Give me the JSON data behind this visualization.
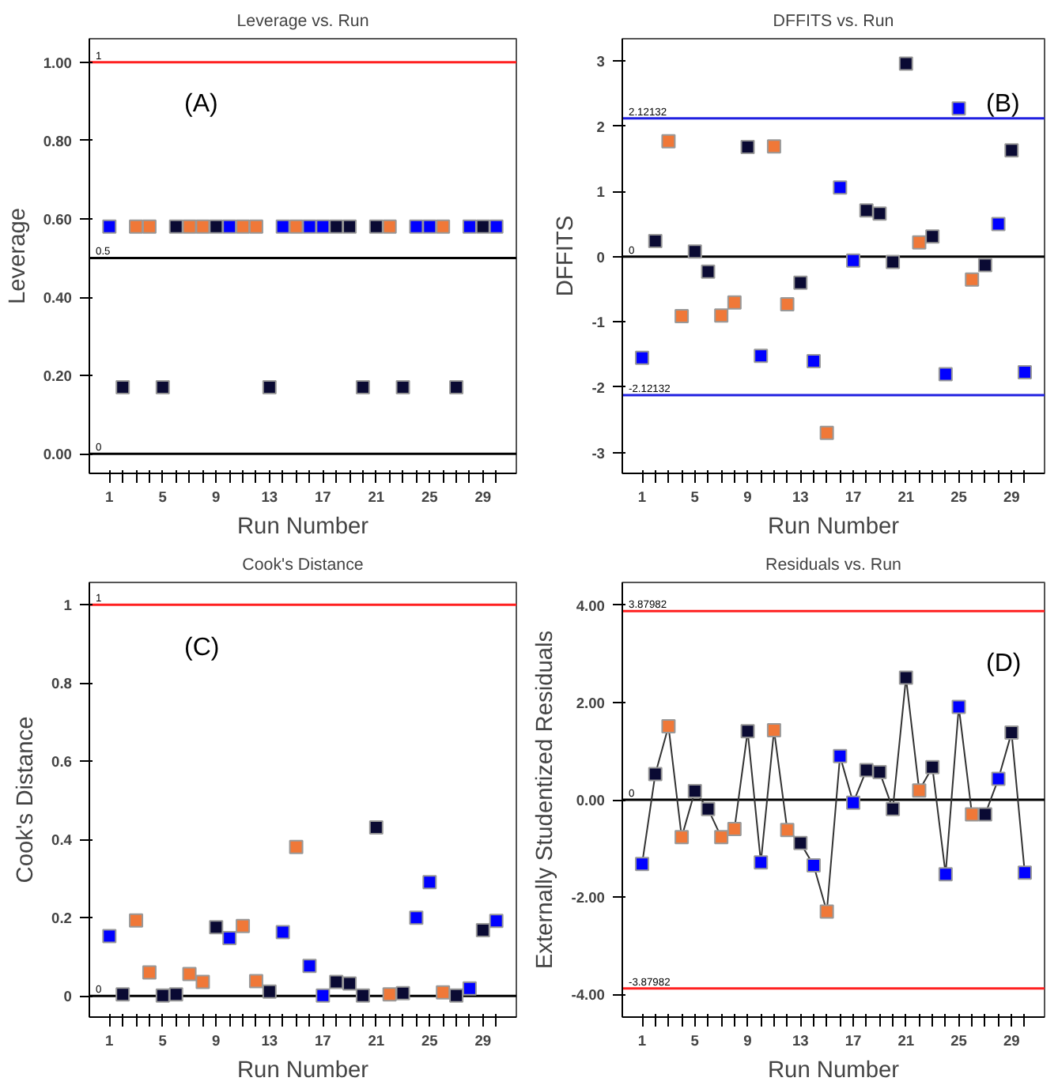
{
  "chart_data": [
    {
      "type": "scatter",
      "title": "Leverage vs. Run",
      "xlabel": "Run Number",
      "ylabel": "Leverage",
      "annotations": [
        "(A)"
      ],
      "marker": "square",
      "grid": false,
      "x": [
        1,
        2,
        3,
        4,
        5,
        6,
        7,
        8,
        9,
        10,
        11,
        12,
        13,
        14,
        15,
        16,
        17,
        18,
        19,
        20,
        21,
        22,
        23,
        24,
        25,
        26,
        27,
        28,
        29,
        30
      ],
      "xlim": [
        -0.5,
        31.5
      ],
      "xticks": [
        1,
        {
          "value": 2,
          "label": null
        },
        {
          "value": 3,
          "label": null
        },
        {
          "value": 4,
          "label": null
        },
        5,
        {
          "value": 6,
          "label": null
        },
        {
          "value": 7,
          "label": null
        },
        {
          "value": 8,
          "label": null
        },
        9,
        {
          "value": 10,
          "label": null
        },
        {
          "value": 11,
          "label": null
        },
        {
          "value": 12,
          "label": null
        },
        13,
        {
          "value": 14,
          "label": null
        },
        {
          "value": 15,
          "label": null
        },
        {
          "value": 16,
          "label": null
        },
        17,
        {
          "value": 18,
          "label": null
        },
        {
          "value": 19,
          "label": null
        },
        {
          "value": 20,
          "label": null
        },
        21,
        {
          "value": 22,
          "label": null
        },
        {
          "value": 23,
          "label": null
        },
        {
          "value": 24,
          "label": null
        },
        25,
        {
          "value": 26,
          "label": null
        },
        {
          "value": 27,
          "label": null
        },
        {
          "value": 28,
          "label": null
        },
        29,
        {
          "value": 30,
          "label": null
        }
      ],
      "ylim": [
        -0.05,
        1.06
      ],
      "yticks": [
        {
          "value": 0,
          "label": "0.00"
        },
        {
          "value": 0.2,
          "label": "0.20"
        },
        {
          "value": 0.4,
          "label": "0.40"
        },
        {
          "value": 0.6,
          "label": "0.60"
        },
        {
          "value": 0.8,
          "label": "0.80"
        },
        {
          "value": 1,
          "label": "1.00"
        }
      ],
      "ref_lines": [
        {
          "axis": "y",
          "value": 1,
          "label": "1",
          "color": "#ff2020"
        },
        {
          "axis": "y",
          "value": 0.5,
          "label": "0.5",
          "color": "#000000"
        },
        {
          "axis": "y",
          "value": 0,
          "label": "0",
          "color": "#000000"
        }
      ],
      "series": [
        {
          "colors": [
            "#0000ff",
            "#0a0a33",
            "#f07838",
            "#f07838",
            "#0a0a33",
            "#0a0a33",
            "#f07838",
            "#f07838",
            "#0a0a33",
            "#0000ff",
            "#f07838",
            "#f07838",
            "#0a0a33",
            "#0000ff",
            "#f07838",
            "#0000ff",
            "#0000ff",
            "#0a0a33",
            "#0a0a33",
            "#0a0a33",
            "#0a0a33",
            "#f07838",
            "#0a0a33",
            "#0000ff",
            "#0000ff",
            "#f07838",
            "#0a0a33",
            "#0000ff",
            "#0a0a33",
            "#0000ff"
          ],
          "values": [
            0.58,
            0.17,
            0.58,
            0.58,
            0.17,
            0.58,
            0.58,
            0.58,
            0.58,
            0.58,
            0.58,
            0.58,
            0.17,
            0.58,
            0.58,
            0.58,
            0.58,
            0.58,
            0.58,
            0.17,
            0.58,
            0.58,
            0.17,
            0.58,
            0.58,
            0.58,
            0.17,
            0.58,
            0.58,
            0.58
          ]
        }
      ]
    },
    {
      "type": "scatter",
      "title": "DFFITS vs. Run",
      "xlabel": "Run Number",
      "ylabel": "DFFITS",
      "annotations": [
        "(B)"
      ],
      "marker": "square",
      "grid": false,
      "x": [
        1,
        2,
        3,
        4,
        5,
        6,
        7,
        8,
        9,
        10,
        11,
        12,
        13,
        14,
        15,
        16,
        17,
        18,
        19,
        20,
        21,
        22,
        23,
        24,
        25,
        26,
        27,
        28,
        29,
        30
      ],
      "xlim": [
        -0.5,
        31.5
      ],
      "xticks": [
        1,
        {
          "value": 2,
          "label": null
        },
        {
          "value": 3,
          "label": null
        },
        {
          "value": 4,
          "label": null
        },
        5,
        {
          "value": 6,
          "label": null
        },
        {
          "value": 7,
          "label": null
        },
        {
          "value": 8,
          "label": null
        },
        9,
        {
          "value": 10,
          "label": null
        },
        {
          "value": 11,
          "label": null
        },
        {
          "value": 12,
          "label": null
        },
        13,
        {
          "value": 14,
          "label": null
        },
        {
          "value": 15,
          "label": null
        },
        {
          "value": 16,
          "label": null
        },
        17,
        {
          "value": 18,
          "label": null
        },
        {
          "value": 19,
          "label": null
        },
        {
          "value": 20,
          "label": null
        },
        21,
        {
          "value": 22,
          "label": null
        },
        {
          "value": 23,
          "label": null
        },
        {
          "value": 24,
          "label": null
        },
        25,
        {
          "value": 26,
          "label": null
        },
        {
          "value": 27,
          "label": null
        },
        {
          "value": 28,
          "label": null
        },
        29,
        {
          "value": 30,
          "label": null
        }
      ],
      "ylim": [
        -3.32,
        3.34
      ],
      "yticks": [
        -3,
        -2,
        -1,
        0,
        1,
        2,
        3
      ],
      "ref_lines": [
        {
          "axis": "y",
          "value": 2.12132,
          "label": "2.12132",
          "color": "#2020e0"
        },
        {
          "axis": "y",
          "value": 0,
          "label": "0",
          "color": "#000000"
        },
        {
          "axis": "y",
          "value": -2.12132,
          "label": "-2.12132",
          "color": "#2020e0"
        }
      ],
      "series": [
        {
          "colors": [
            "#0000ff",
            "#0a0a33",
            "#f07838",
            "#f07838",
            "#0a0a33",
            "#0a0a33",
            "#f07838",
            "#f07838",
            "#0a0a33",
            "#0000ff",
            "#f07838",
            "#f07838",
            "#0a0a33",
            "#0000ff",
            "#f07838",
            "#0000ff",
            "#0000ff",
            "#0a0a33",
            "#0a0a33",
            "#0a0a33",
            "#0a0a33",
            "#f07838",
            "#0a0a33",
            "#0000ff",
            "#0000ff",
            "#f07838",
            "#0a0a33",
            "#0000ff",
            "#0a0a33",
            "#0000ff"
          ],
          "values": [
            -1.55,
            0.24,
            1.77,
            -0.91,
            0.08,
            -0.23,
            -0.9,
            -0.7,
            1.68,
            -1.52,
            1.69,
            -0.73,
            -0.4,
            -1.6,
            -2.7,
            1.06,
            -0.06,
            0.71,
            0.66,
            -0.08,
            2.96,
            0.22,
            0.31,
            -1.8,
            2.27,
            -0.35,
            -0.13,
            0.5,
            1.63,
            -1.77
          ]
        }
      ]
    },
    {
      "type": "scatter",
      "title": "Cook's Distance",
      "xlabel": "Run Number",
      "ylabel": "Cook's Distance",
      "annotations": [
        "(C)"
      ],
      "marker": "square",
      "grid": false,
      "x": [
        1,
        2,
        3,
        4,
        5,
        6,
        7,
        8,
        9,
        10,
        11,
        12,
        13,
        14,
        15,
        16,
        17,
        18,
        19,
        20,
        21,
        22,
        23,
        24,
        25,
        26,
        27,
        28,
        29,
        30
      ],
      "xlim": [
        -0.5,
        31.5
      ],
      "xticks": [
        1,
        {
          "value": 2,
          "label": null
        },
        {
          "value": 3,
          "label": null
        },
        {
          "value": 4,
          "label": null
        },
        5,
        {
          "value": 6,
          "label": null
        },
        {
          "value": 7,
          "label": null
        },
        {
          "value": 8,
          "label": null
        },
        9,
        {
          "value": 10,
          "label": null
        },
        {
          "value": 11,
          "label": null
        },
        {
          "value": 12,
          "label": null
        },
        13,
        {
          "value": 14,
          "label": null
        },
        {
          "value": 15,
          "label": null
        },
        {
          "value": 16,
          "label": null
        },
        17,
        {
          "value": 18,
          "label": null
        },
        {
          "value": 19,
          "label": null
        },
        {
          "value": 20,
          "label": null
        },
        21,
        {
          "value": 22,
          "label": null
        },
        {
          "value": 23,
          "label": null
        },
        {
          "value": 24,
          "label": null
        },
        25,
        {
          "value": 26,
          "label": null
        },
        {
          "value": 27,
          "label": null
        },
        {
          "value": 28,
          "label": null
        },
        29,
        {
          "value": 30,
          "label": null
        }
      ],
      "ylim": [
        -0.054,
        1.057
      ],
      "yticks": [
        0,
        0.2,
        0.4,
        0.6,
        0.8,
        1
      ],
      "ref_lines": [
        {
          "axis": "y",
          "value": 1,
          "label": "1",
          "color": "#ff2020"
        },
        {
          "axis": "y",
          "value": 0,
          "label": "0",
          "color": "#000000"
        }
      ],
      "series": [
        {
          "colors": [
            "#0000ff",
            "#0a0a33",
            "#f07838",
            "#f07838",
            "#0a0a33",
            "#0a0a33",
            "#f07838",
            "#f07838",
            "#0a0a33",
            "#0000ff",
            "#f07838",
            "#f07838",
            "#0a0a33",
            "#0000ff",
            "#f07838",
            "#0000ff",
            "#0000ff",
            "#0a0a33",
            "#0a0a33",
            "#0a0a33",
            "#0a0a33",
            "#f07838",
            "#0a0a33",
            "#0000ff",
            "#0000ff",
            "#f07838",
            "#0a0a33",
            "#0000ff",
            "#0a0a33",
            "#0000ff"
          ],
          "values": [
            0.153,
            0.004,
            0.193,
            0.06,
            0.001,
            0.004,
            0.056,
            0.036,
            0.176,
            0.148,
            0.179,
            0.038,
            0.011,
            0.163,
            0.381,
            0.077,
            0.001,
            0.036,
            0.032,
            0.001,
            0.431,
            0.004,
            0.007,
            0.2,
            0.291,
            0.009,
            0.001,
            0.019,
            0.168,
            0.192
          ]
        }
      ]
    },
    {
      "type": "line",
      "title": "Residuals vs. Run",
      "xlabel": "Run Number",
      "ylabel": "Externally Studentized Residuals",
      "annotations": [
        "(D)"
      ],
      "marker": "square",
      "line_style": "solid",
      "grid": false,
      "x": [
        1,
        2,
        3,
        4,
        5,
        6,
        7,
        8,
        9,
        10,
        11,
        12,
        13,
        14,
        15,
        16,
        17,
        18,
        19,
        20,
        21,
        22,
        23,
        24,
        25,
        26,
        27,
        28,
        29,
        30
      ],
      "xlim": [
        -0.5,
        31.5
      ],
      "xticks": [
        1,
        {
          "value": 2,
          "label": null
        },
        {
          "value": 3,
          "label": null
        },
        {
          "value": 4,
          "label": null
        },
        5,
        {
          "value": 6,
          "label": null
        },
        {
          "value": 7,
          "label": null
        },
        {
          "value": 8,
          "label": null
        },
        9,
        {
          "value": 10,
          "label": null
        },
        {
          "value": 11,
          "label": null
        },
        {
          "value": 12,
          "label": null
        },
        13,
        {
          "value": 14,
          "label": null
        },
        {
          "value": 15,
          "label": null
        },
        {
          "value": 16,
          "label": null
        },
        17,
        {
          "value": 18,
          "label": null
        },
        {
          "value": 19,
          "label": null
        },
        {
          "value": 20,
          "label": null
        },
        21,
        {
          "value": 22,
          "label": null
        },
        {
          "value": 23,
          "label": null
        },
        {
          "value": 24,
          "label": null
        },
        25,
        {
          "value": 26,
          "label": null
        },
        {
          "value": 27,
          "label": null
        },
        {
          "value": 28,
          "label": null
        },
        29,
        {
          "value": 30,
          "label": null
        }
      ],
      "ylim": [
        -4.47,
        4.47
      ],
      "yticks": [
        {
          "value": -4,
          "label": "-4.00"
        },
        {
          "value": -2,
          "label": "-2.00"
        },
        {
          "value": 0,
          "label": "0.00"
        },
        {
          "value": 2,
          "label": "2.00"
        },
        {
          "value": 4,
          "label": "4.00"
        }
      ],
      "ref_lines": [
        {
          "axis": "y",
          "value": 3.87982,
          "label": "3.87982",
          "color": "#ff2020"
        },
        {
          "axis": "y",
          "value": 0,
          "label": "0",
          "color": "#000000"
        },
        {
          "axis": "y",
          "value": -3.87982,
          "label": "-3.87982",
          "color": "#ff2020"
        }
      ],
      "series": [
        {
          "color": "#333333",
          "colors": [
            "#0000ff",
            "#0a0a33",
            "#f07838",
            "#f07838",
            "#0a0a33",
            "#0a0a33",
            "#f07838",
            "#f07838",
            "#0a0a33",
            "#0000ff",
            "#f07838",
            "#f07838",
            "#0a0a33",
            "#0000ff",
            "#f07838",
            "#0000ff",
            "#0000ff",
            "#0a0a33",
            "#0a0a33",
            "#0a0a33",
            "#0a0a33",
            "#f07838",
            "#0a0a33",
            "#0000ff",
            "#0000ff",
            "#f07838",
            "#0a0a33",
            "#0000ff",
            "#0a0a33",
            "#0000ff"
          ],
          "values": [
            -1.32,
            0.53,
            1.51,
            -0.77,
            0.18,
            -0.19,
            -0.77,
            -0.6,
            1.41,
            -1.29,
            1.43,
            -0.62,
            -0.89,
            -1.35,
            -2.3,
            0.9,
            -0.06,
            0.61,
            0.57,
            -0.19,
            2.51,
            0.19,
            0.67,
            -1.53,
            1.91,
            -0.3,
            -0.3,
            0.43,
            1.38,
            -1.5
          ]
        }
      ]
    }
  ]
}
